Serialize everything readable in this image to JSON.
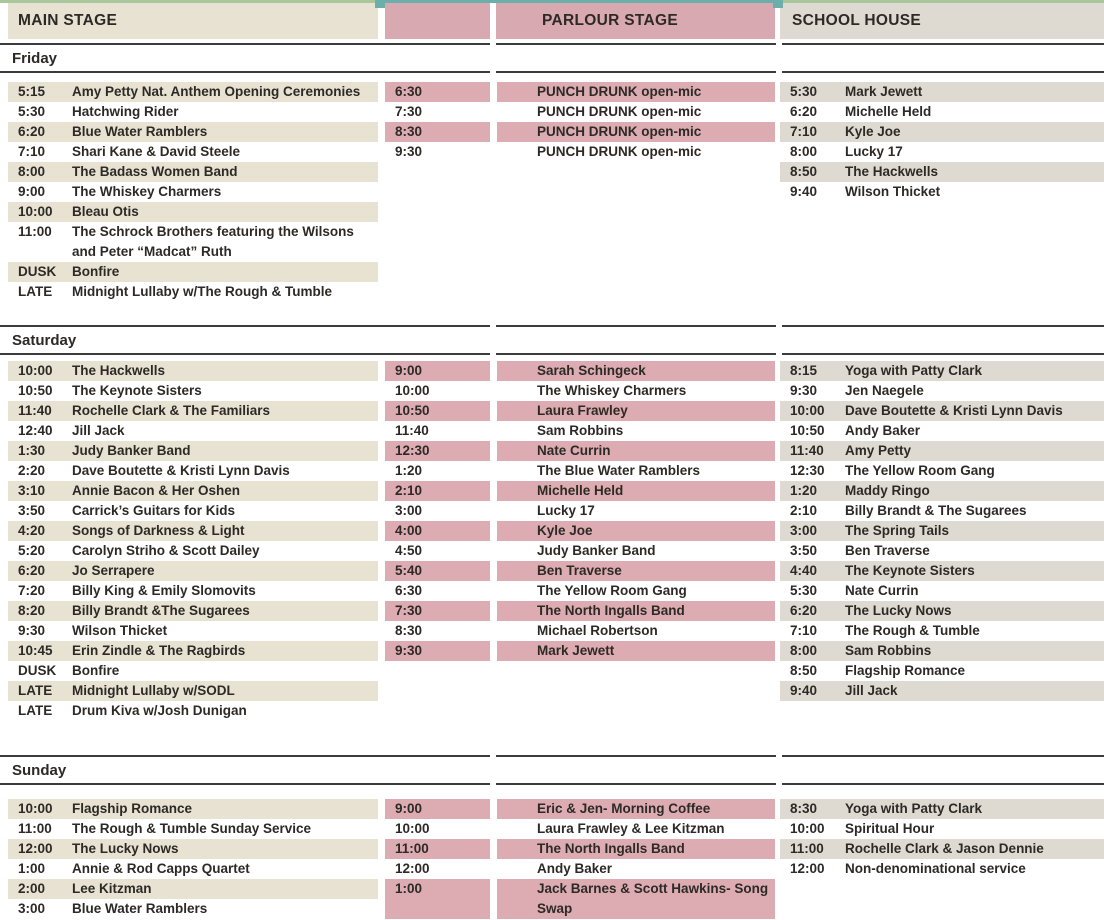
{
  "colors": {
    "main_shade": "#e8e2d3",
    "parlour_shade": "#dcacb2",
    "parlour_header": "#d9a9b1",
    "school_shade": "#dedad2",
    "rule": "#3b3b3b",
    "teal": "#6cafaa",
    "green": "#a9c79a"
  },
  "stages": [
    {
      "name": "MAIN STAGE"
    },
    {
      "name": "PARLOUR STAGE"
    },
    {
      "name": "SCHOOL HOUSE"
    }
  ],
  "days": [
    {
      "label": "Friday",
      "main": [
        {
          "time": "5:15",
          "act": "Amy Petty Nat. Anthem Opening Ceremonies"
        },
        {
          "time": "5:30",
          "act": "Hatchwing Rider"
        },
        {
          "time": "6:20",
          "act": "Blue Water Ramblers"
        },
        {
          "time": "7:10",
          "act": "Shari Kane & David Steele"
        },
        {
          "time": "8:00",
          "act": "The Badass Women Band"
        },
        {
          "time": "9:00",
          "act": "The Whiskey Charmers"
        },
        {
          "time": "10:00",
          "act": "Bleau Otis"
        },
        {
          "time": "11:00",
          "act": "The Schrock Brothers featuring the Wilsons and Peter “Madcat” Ruth"
        },
        {
          "time": "DUSK",
          "act": "Bonfire"
        },
        {
          "time": "LATE",
          "act": "Midnight Lullaby w/The Rough & Tumble"
        }
      ],
      "parlour": [
        {
          "time": "6:30",
          "act": "PUNCH DRUNK open-mic"
        },
        {
          "time": "7:30",
          "act": "PUNCH DRUNK open-mic"
        },
        {
          "time": "8:30",
          "act": "PUNCH DRUNK open-mic"
        },
        {
          "time": "9:30",
          "act": "PUNCH DRUNK open-mic"
        }
      ],
      "school": [
        {
          "time": "5:30",
          "act": "Mark Jewett"
        },
        {
          "time": "6:20",
          "act": "Michelle Held"
        },
        {
          "time": "7:10",
          "act": "Kyle Joe"
        },
        {
          "time": "8:00",
          "act": "Lucky 17"
        },
        {
          "time": "8:50",
          "act": "The Hackwells"
        },
        {
          "time": "9:40",
          "act": "Wilson Thicket"
        }
      ]
    },
    {
      "label": "Saturday",
      "main": [
        {
          "time": "10:00",
          "act": "The Hackwells"
        },
        {
          "time": "10:50",
          "act": "The Keynote Sisters"
        },
        {
          "time": "11:40",
          "act": "Rochelle Clark & The Familiars"
        },
        {
          "time": "12:40",
          "act": "Jill Jack"
        },
        {
          "time": "1:30",
          "act": "Judy Banker Band"
        },
        {
          "time": "2:20",
          "act": "Dave Boutette & Kristi Lynn Davis"
        },
        {
          "time": "3:10",
          "act": "Annie Bacon & Her Oshen"
        },
        {
          "time": "3:50",
          "act": "Carrick’s Guitars for Kids"
        },
        {
          "time": "4:20",
          "act": "Songs of Darkness & Light"
        },
        {
          "time": "5:20",
          "act": "Carolyn Striho & Scott Dailey"
        },
        {
          "time": "6:20",
          "act": "Jo Serrapere"
        },
        {
          "time": "7:20",
          "act": "Billy King & Emily Slomovits"
        },
        {
          "time": "8:20",
          "act": "Billy Brandt &The Sugarees"
        },
        {
          "time": "9:30",
          "act": "Wilson Thicket"
        },
        {
          "time": "10:45",
          "act": "Erin Zindle & The Ragbirds"
        },
        {
          "time": "DUSK",
          "act": "Bonfire"
        },
        {
          "time": "LATE",
          "act": "Midnight Lullaby w/SODL"
        },
        {
          "time": "LATE",
          "act": "Drum Kiva w/Josh Dunigan"
        }
      ],
      "parlour": [
        {
          "time": "9:00",
          "act": "Sarah Schingeck"
        },
        {
          "time": "10:00",
          "act": "The Whiskey Charmers"
        },
        {
          "time": "10:50",
          "act": "Laura Frawley"
        },
        {
          "time": "11:40",
          "act": "Sam Robbins"
        },
        {
          "time": "12:30",
          "act": "Nate Currin"
        },
        {
          "time": "1:20",
          "act": "The Blue Water Ramblers"
        },
        {
          "time": "2:10",
          "act": "Michelle Held"
        },
        {
          "time": "3:00",
          "act": "Lucky 17"
        },
        {
          "time": "4:00",
          "act": "Kyle Joe"
        },
        {
          "time": "4:50",
          "act": "Judy Banker Band"
        },
        {
          "time": "5:40",
          "act": "Ben Traverse"
        },
        {
          "time": "6:30",
          "act": "The Yellow Room Gang"
        },
        {
          "time": "7:30",
          "act": "The North Ingalls Band"
        },
        {
          "time": "8:30",
          "act": "Michael Robertson"
        },
        {
          "time": "9:30",
          "act": "Mark Jewett"
        }
      ],
      "school": [
        {
          "time": "8:15",
          "act": "Yoga with Patty Clark"
        },
        {
          "time": "9:30",
          "act": "Jen Naegele"
        },
        {
          "time": "10:00",
          "act": "Dave Boutette & Kristi Lynn Davis"
        },
        {
          "time": "10:50",
          "act": "Andy Baker"
        },
        {
          "time": "11:40",
          "act": "Amy Petty"
        },
        {
          "time": "12:30",
          "act": "The Yellow Room Gang"
        },
        {
          "time": "1:20",
          "act": "Maddy Ringo"
        },
        {
          "time": "2:10",
          "act": "Billy Brandt & The Sugarees"
        },
        {
          "time": "3:00",
          "act": "The Spring Tails"
        },
        {
          "time": "3:50",
          "act": "Ben Traverse"
        },
        {
          "time": "4:40",
          "act": "The Keynote Sisters"
        },
        {
          "time": "5:30",
          "act": "Nate Currin"
        },
        {
          "time": "6:20",
          "act": "The Lucky Nows"
        },
        {
          "time": "7:10",
          "act": "The Rough & Tumble"
        },
        {
          "time": "8:00",
          "act": "Sam Robbins"
        },
        {
          "time": "8:50",
          "act": "Flagship Romance"
        },
        {
          "time": "9:40",
          "act": "Jill Jack"
        }
      ]
    },
    {
      "label": "Sunday",
      "main": [
        {
          "time": "10:00",
          "act": "Flagship Romance"
        },
        {
          "time": "11:00",
          "act": "The Rough & Tumble Sunday Service"
        },
        {
          "time": "12:00",
          "act": "The Lucky Nows"
        },
        {
          "time": "1:00",
          "act": "Annie & Rod Capps Quartet"
        },
        {
          "time": "2:00",
          "act": "Lee Kitzman"
        },
        {
          "time": "3:00",
          "act": "Blue Water Ramblers"
        }
      ],
      "parlour": [
        {
          "time": "9:00",
          "act": "Eric & Jen- Morning Coffee"
        },
        {
          "time": "10:00",
          "act": "Laura Frawley & Lee Kitzman"
        },
        {
          "time": "11:00",
          "act": "The North Ingalls Band"
        },
        {
          "time": "12:00",
          "act": "Andy Baker"
        },
        {
          "time": "1:00",
          "act": "Jack Barnes & Scott Hawkins- Song Swap"
        }
      ],
      "school": [
        {
          "time": "8:30",
          "act": "Yoga with Patty Clark"
        },
        {
          "time": "10:00",
          "act": "Spiritual Hour"
        },
        {
          "time": "11:00",
          "act": "Rochelle Clark & Jason Dennie"
        },
        {
          "time": "12:00",
          "act": "Non-denominational service"
        }
      ]
    }
  ]
}
